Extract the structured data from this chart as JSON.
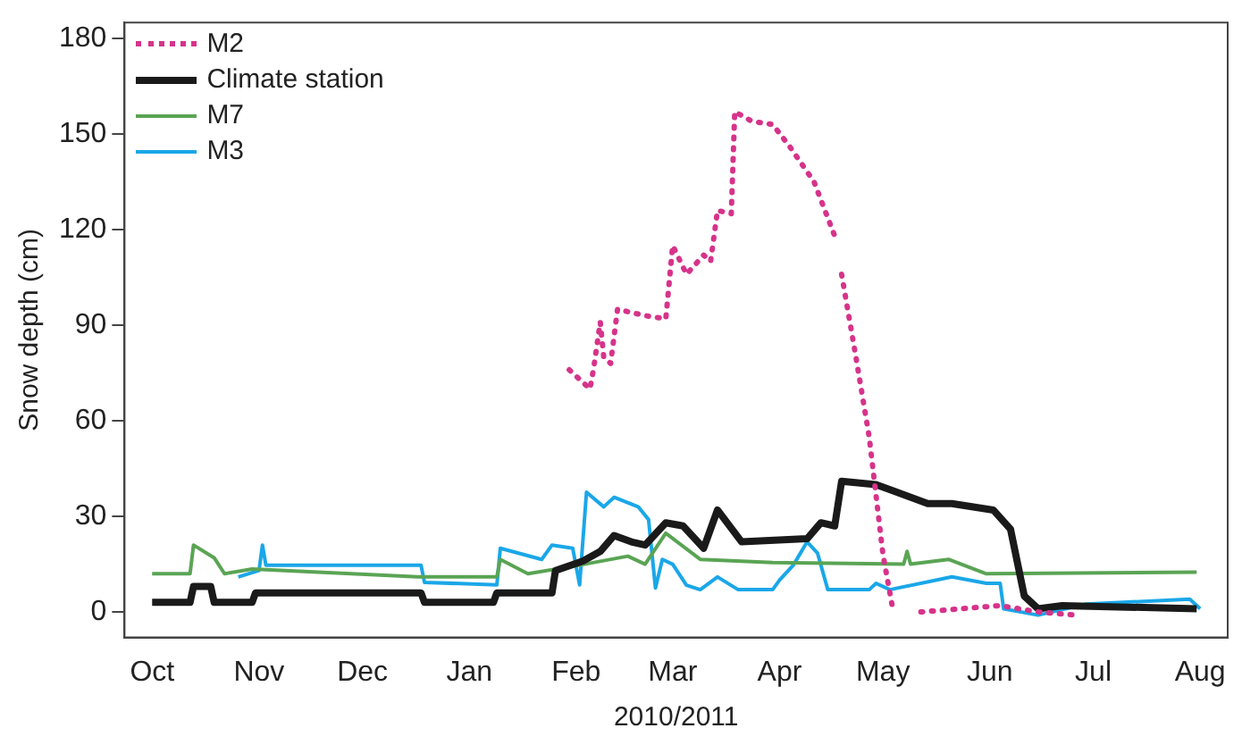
{
  "chart_data": {
    "type": "line",
    "xlabel": "2010/2011",
    "ylabel": "Snow depth (cm)",
    "xlim": [
      "2010-09-23",
      "2011-08-09"
    ],
    "ylim": [
      -8,
      185
    ],
    "xticks": [
      {
        "value": "2010-10-01",
        "label": "Oct"
      },
      {
        "value": "2010-11-01",
        "label": "Nov"
      },
      {
        "value": "2010-12-01",
        "label": "Dec"
      },
      {
        "value": "2011-01-01",
        "label": "Jan"
      },
      {
        "value": "2011-02-01",
        "label": "Feb"
      },
      {
        "value": "2011-03-01",
        "label": "Mar"
      },
      {
        "value": "2011-04-01",
        "label": "Apr"
      },
      {
        "value": "2011-05-01",
        "label": "May"
      },
      {
        "value": "2011-06-01",
        "label": "Jun"
      },
      {
        "value": "2011-07-01",
        "label": "Jul"
      },
      {
        "value": "2011-08-01",
        "label": "Aug"
      }
    ],
    "yticks": [
      0,
      30,
      60,
      90,
      120,
      150,
      180
    ],
    "grid": false,
    "legend": "top left",
    "marker": "none",
    "series": [
      {
        "name": "M2",
        "color": "#d6338a",
        "line_style": "dotted",
        "x": [
          "2011-01-30",
          "2011-02-05",
          "2011-02-06",
          "2011-02-08",
          "2011-02-09",
          "2011-02-11",
          "2011-02-13",
          "2011-02-21",
          "2011-02-27",
          "2011-03-01",
          "2011-03-05",
          "2011-03-10",
          "2011-03-12",
          "2011-03-14",
          "2011-03-18",
          "2011-03-19",
          "2011-03-24",
          "2011-03-30",
          "2011-04-04",
          "2011-04-11",
          "2011-04-17",
          "2011-04-18",
          "2011-04-19",
          "2011-04-23",
          "2011-04-27",
          "2011-05-01",
          "2011-05-04",
          "2011-05-08",
          "2011-05-12",
          "2011-06-04",
          "2011-06-15",
          "2011-06-26"
        ],
        "values": [
          76,
          70,
          76,
          91,
          80,
          78,
          95,
          93,
          92,
          115,
          106,
          112,
          110,
          126,
          125,
          157,
          154,
          153,
          146,
          135,
          118,
          null,
          106,
          81,
          55,
          18,
          0,
          null,
          0,
          2,
          0,
          -1
        ]
      },
      {
        "name": "Climate station",
        "color": "#1a1a1a",
        "line_style": "solid",
        "x": [
          "2010-10-01",
          "2010-10-12",
          "2010-10-13",
          "2010-10-18",
          "2010-10-19",
          "2010-10-30",
          "2010-10-31",
          "2010-12-18",
          "2010-12-19",
          "2011-01-08",
          "2011-01-09",
          "2011-01-25",
          "2011-01-26",
          "2011-02-03",
          "2011-02-08",
          "2011-02-12",
          "2011-02-17",
          "2011-02-21",
          "2011-02-27",
          "2011-03-04",
          "2011-03-10",
          "2011-03-14",
          "2011-03-21",
          "2011-04-09",
          "2011-04-13",
          "2011-04-17",
          "2011-04-19",
          "2011-04-29",
          "2011-05-04",
          "2011-05-14",
          "2011-05-21",
          "2011-06-02",
          "2011-06-07",
          "2011-06-11",
          "2011-06-15",
          "2011-06-22",
          "2011-07-31"
        ],
        "values": [
          3,
          3,
          8,
          8,
          3,
          3,
          6,
          6,
          3,
          3,
          6,
          6,
          13,
          16,
          19,
          24,
          22,
          21,
          28,
          27,
          20,
          32,
          22,
          23,
          28,
          27,
          41,
          40,
          38,
          34,
          34,
          32,
          26,
          5,
          1,
          2,
          1
        ]
      },
      {
        "name": "M7",
        "color": "#5aa454",
        "line_style": "solid",
        "x": [
          "2010-10-01",
          "2010-10-12",
          "2010-10-13",
          "2010-10-19",
          "2010-10-22",
          "2010-10-30",
          "2010-12-17",
          "2011-01-09",
          "2011-01-10",
          "2011-01-18",
          "2011-02-02",
          "2011-02-16",
          "2011-02-21",
          "2011-02-27",
          "2011-03-09",
          "2011-03-30",
          "2011-05-07",
          "2011-05-08",
          "2011-05-09",
          "2011-05-20",
          "2011-05-31",
          "2011-07-31"
        ],
        "values": [
          12,
          12,
          21,
          17,
          12,
          13.5,
          11,
          11,
          16.5,
          12,
          14.7,
          17.5,
          15,
          24.7,
          16.5,
          15.5,
          15,
          19,
          15,
          16.5,
          12,
          12.5
        ]
      },
      {
        "name": "M3",
        "color": "#1aa7e8",
        "line_style": "solid",
        "x": [
          "2010-10-26",
          "2010-11-01",
          "2010-11-02",
          "2010-11-03",
          "2010-12-18",
          "2010-12-19",
          "2011-01-09",
          "2011-01-10",
          "2011-01-22",
          "2011-01-25",
          "2011-01-31",
          "2011-02-02",
          "2011-02-04",
          "2011-02-09",
          "2011-02-12",
          "2011-02-19",
          "2011-02-22",
          "2011-02-24",
          "2011-02-26",
          "2011-03-01",
          "2011-03-05",
          "2011-03-09",
          "2011-03-14",
          "2011-03-20",
          "2011-03-30",
          "2011-04-01",
          "2011-04-05",
          "2011-04-09",
          "2011-04-12",
          "2011-04-15",
          "2011-04-27",
          "2011-04-29",
          "2011-05-03",
          "2011-05-21",
          "2011-05-31",
          "2011-06-04",
          "2011-06-05",
          "2011-06-15",
          "2011-06-29",
          "2011-07-29",
          "2011-08-01"
        ],
        "values": [
          11,
          13,
          21,
          14.7,
          14.7,
          9.3,
          8.5,
          20,
          16.5,
          21,
          20,
          8.5,
          37.6,
          33,
          36,
          33,
          29,
          7.5,
          16.5,
          15,
          8.4,
          7,
          11,
          7,
          7,
          10,
          14.7,
          22,
          18.5,
          7,
          7,
          9,
          7,
          11,
          9,
          9,
          1,
          -1,
          2.5,
          4,
          1
        ]
      }
    ]
  }
}
